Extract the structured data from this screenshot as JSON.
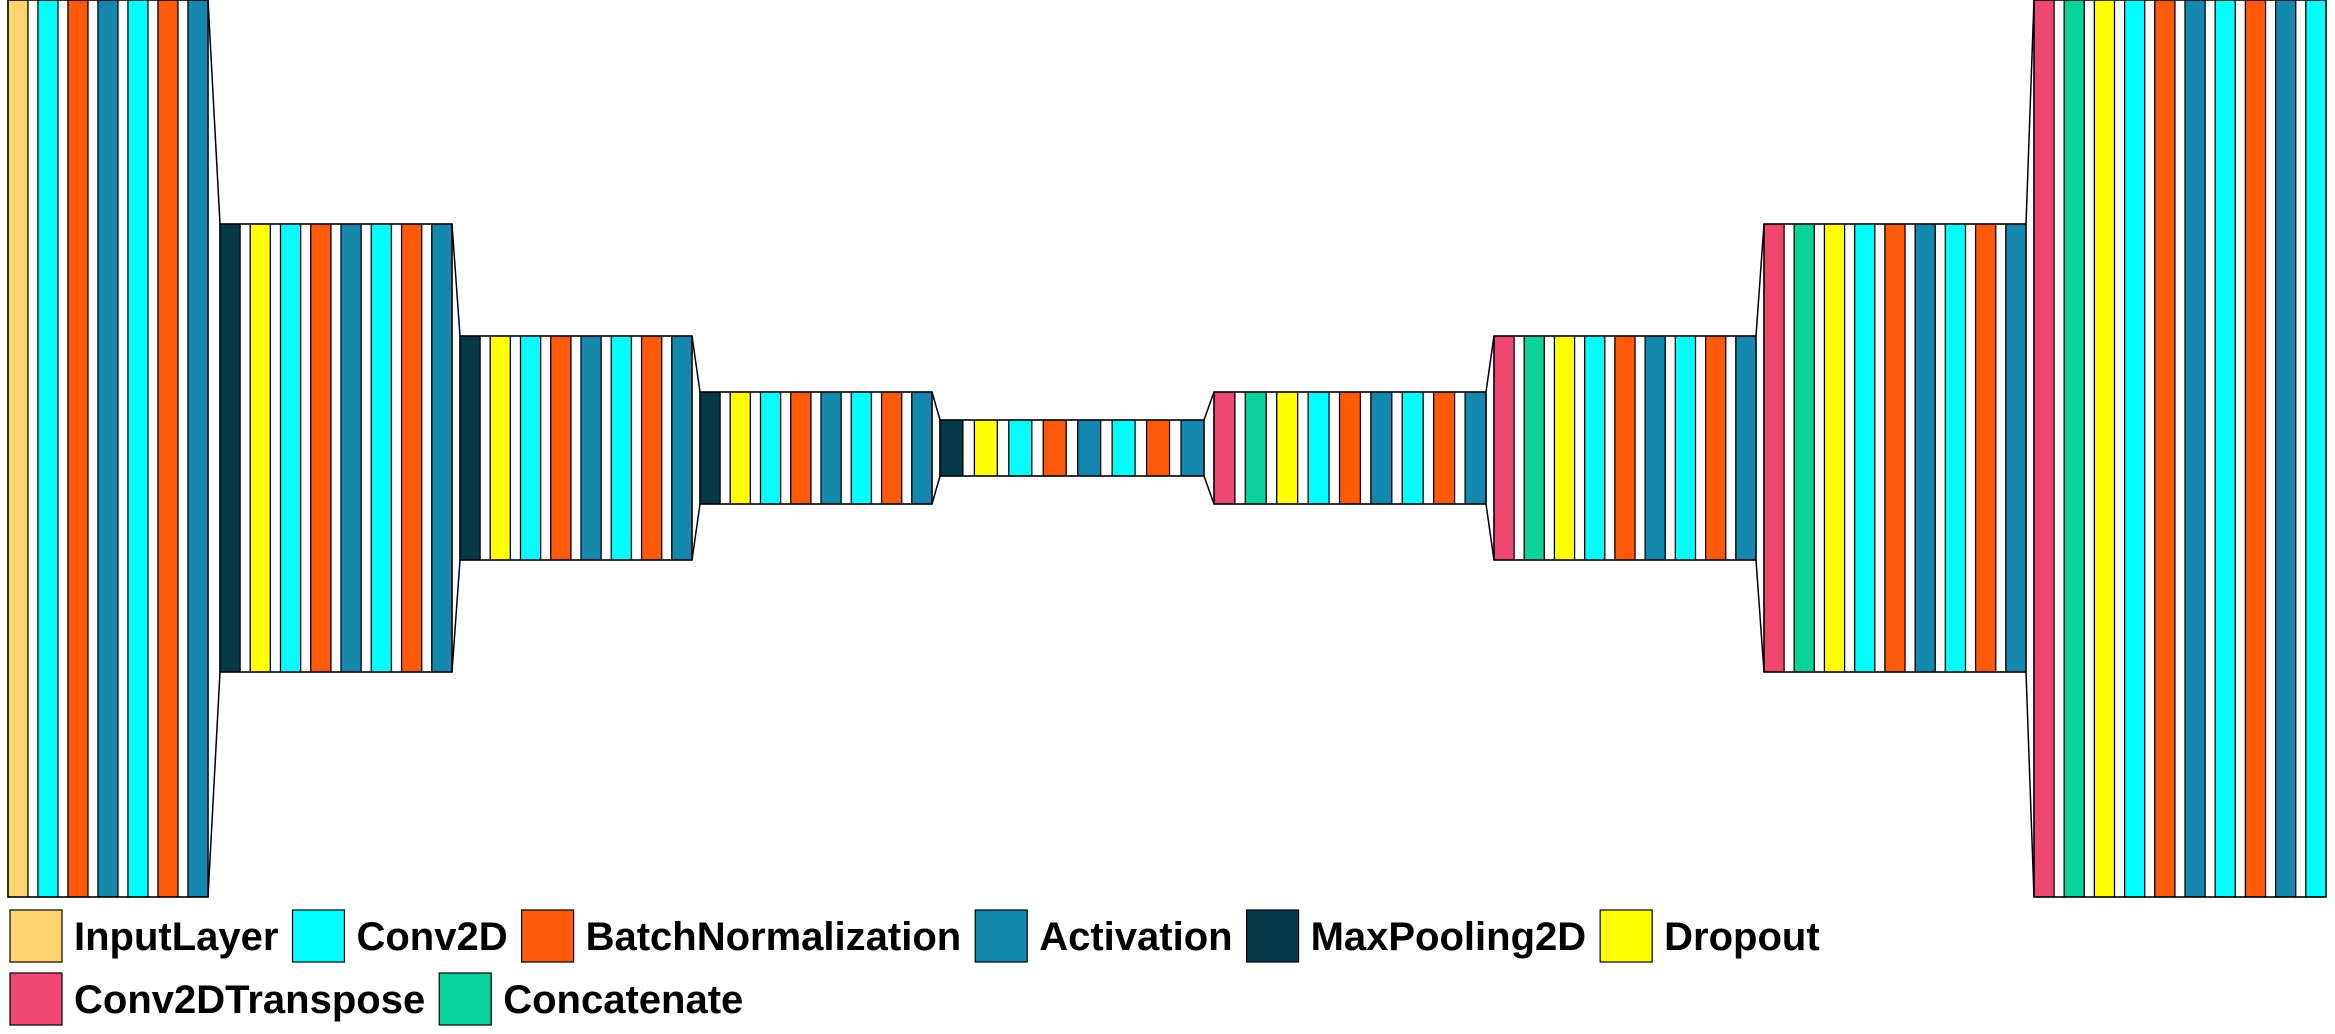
{
  "colors": {
    "InputLayer": "#FFD36E",
    "Conv2D": "#00FFFF",
    "BatchNormalization": "#FF5A0A",
    "Activation": "#1488AF",
    "MaxPooling2D": "#073848",
    "Dropout": "#FFFF00",
    "Conv2DTranspose": "#EE4771",
    "Concatenate": "#0AD39A",
    "Spacer": "#FFFFFF"
  },
  "legend": [
    {
      "key": "InputLayer",
      "label": "InputLayer"
    },
    {
      "key": "Conv2D",
      "label": "Conv2D"
    },
    {
      "key": "BatchNormalization",
      "label": "BatchNormalization"
    },
    {
      "key": "Activation",
      "label": "Activation"
    },
    {
      "key": "MaxPooling2D",
      "label": "MaxPooling2D"
    },
    {
      "key": "Dropout",
      "label": "Dropout"
    },
    {
      "key": "Conv2DTranspose",
      "label": "Conv2DTranspose"
    },
    {
      "key": "Concatenate",
      "label": "Concatenate"
    }
  ],
  "stages": [
    {
      "name": "input-block",
      "layers": [
        "InputLayer",
        "Spacer",
        "Conv2D",
        "Spacer",
        "BatchNormalization",
        "Spacer",
        "Activation",
        "Spacer",
        "Conv2D",
        "Spacer",
        "BatchNormalization",
        "Spacer",
        "Activation"
      ]
    },
    {
      "name": "encoder-block-1",
      "layers": [
        "MaxPooling2D",
        "Spacer",
        "Dropout",
        "Spacer",
        "Conv2D",
        "Spacer",
        "BatchNormalization",
        "Spacer",
        "Activation",
        "Spacer",
        "Conv2D",
        "Spacer",
        "BatchNormalization",
        "Spacer",
        "Activation"
      ]
    },
    {
      "name": "encoder-block-2",
      "layers": [
        "MaxPooling2D",
        "Spacer",
        "Dropout",
        "Spacer",
        "Conv2D",
        "Spacer",
        "BatchNormalization",
        "Spacer",
        "Activation",
        "Spacer",
        "Conv2D",
        "Spacer",
        "BatchNormalization",
        "Spacer",
        "Activation"
      ]
    },
    {
      "name": "encoder-block-3",
      "layers": [
        "MaxPooling2D",
        "Spacer",
        "Dropout",
        "Spacer",
        "Conv2D",
        "Spacer",
        "BatchNormalization",
        "Spacer",
        "Activation",
        "Spacer",
        "Conv2D",
        "Spacer",
        "BatchNormalization",
        "Spacer",
        "Activation"
      ]
    },
    {
      "name": "bottleneck-block",
      "layers": [
        "MaxPooling2D",
        "Spacer",
        "Dropout",
        "Spacer",
        "Conv2D",
        "Spacer",
        "BatchNormalization",
        "Spacer",
        "Activation",
        "Spacer",
        "Conv2D",
        "Spacer",
        "BatchNormalization",
        "Spacer",
        "Activation"
      ]
    },
    {
      "name": "decoder-block-1",
      "layers": [
        "Conv2DTranspose",
        "Spacer",
        "Concatenate",
        "Spacer",
        "Dropout",
        "Spacer",
        "Conv2D",
        "Spacer",
        "BatchNormalization",
        "Spacer",
        "Activation",
        "Spacer",
        "Conv2D",
        "Spacer",
        "BatchNormalization",
        "Spacer",
        "Activation"
      ]
    },
    {
      "name": "decoder-block-2",
      "layers": [
        "Conv2DTranspose",
        "Spacer",
        "Concatenate",
        "Spacer",
        "Dropout",
        "Spacer",
        "Conv2D",
        "Spacer",
        "BatchNormalization",
        "Spacer",
        "Activation",
        "Spacer",
        "Conv2D",
        "Spacer",
        "BatchNormalization",
        "Spacer",
        "Activation"
      ]
    },
    {
      "name": "decoder-block-3",
      "layers": [
        "Conv2DTranspose",
        "Spacer",
        "Concatenate",
        "Spacer",
        "Dropout",
        "Spacer",
        "Conv2D",
        "Spacer",
        "BatchNormalization",
        "Spacer",
        "Activation",
        "Spacer",
        "Conv2D",
        "Spacer",
        "BatchNormalization",
        "Spacer",
        "Activation"
      ]
    },
    {
      "name": "decoder-block-4",
      "layers": [
        "Conv2DTranspose",
        "Spacer",
        "Concatenate",
        "Spacer",
        "Dropout",
        "Spacer",
        "Conv2D",
        "Spacer",
        "BatchNormalization",
        "Spacer",
        "Activation",
        "Spacer",
        "Conv2D",
        "Spacer",
        "BatchNormalization",
        "Spacer",
        "Activation",
        "Spacer",
        "Conv2D"
      ]
    }
  ]
}
